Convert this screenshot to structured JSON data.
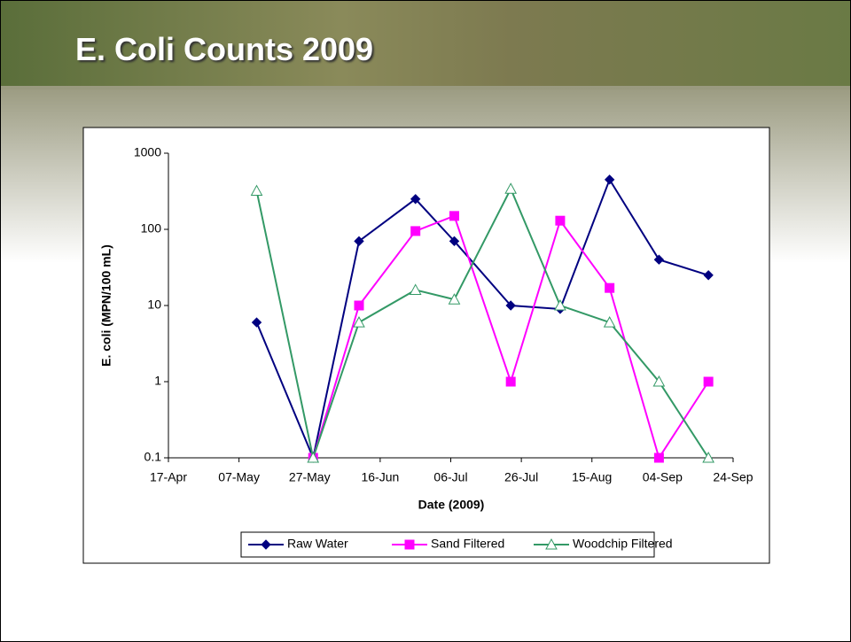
{
  "slide_title": "E. Coli Counts 2009",
  "chart_data": {
    "type": "line",
    "x_label": "Date (2009)",
    "y_label": "E. coli (MPN/100 mL)",
    "x": [
      "2009-05-12",
      "2009-05-28",
      "2009-06-10",
      "2009-06-26",
      "2009-07-07",
      "2009-07-23",
      "2009-08-06",
      "2009-08-20",
      "2009-09-03",
      "2009-09-17"
    ],
    "series": [
      {
        "name": "Raw Water",
        "color": "#000080",
        "marker": "diamond",
        "values": [
          6,
          0.1,
          70,
          250,
          70,
          10,
          9,
          450,
          40,
          25
        ]
      },
      {
        "name": "Sand Filtered",
        "color": "#ff00ff",
        "marker": "square",
        "values": [
          null,
          0.1,
          10,
          95,
          150,
          1,
          130,
          17,
          0.1,
          1
        ]
      },
      {
        "name": "Woodchip Filtered",
        "color": "#339966",
        "marker": "triangle",
        "values": [
          320,
          0.1,
          6,
          16,
          12,
          340,
          10,
          6,
          1,
          0.1
        ]
      }
    ],
    "xlim": [
      "2009-04-17",
      "2009-09-24"
    ],
    "xticks": [
      {
        "value": "2009-04-17",
        "label": "17-Apr"
      },
      {
        "value": "2009-05-07",
        "label": "07-May"
      },
      {
        "value": "2009-05-27",
        "label": "27-May"
      },
      {
        "value": "2009-06-16",
        "label": "16-Jun"
      },
      {
        "value": "2009-07-06",
        "label": "06-Jul"
      },
      {
        "value": "2009-07-26",
        "label": "26-Jul"
      },
      {
        "value": "2009-08-15",
        "label": "15-Aug"
      },
      {
        "value": "2009-09-04",
        "label": "04-Sep"
      },
      {
        "value": "2009-09-24",
        "label": "24-Sep"
      }
    ],
    "ylim": [
      0.1,
      1000
    ],
    "yticks": [
      0.1,
      1,
      10,
      100,
      1000
    ],
    "log_y": true,
    "legend": "bottom"
  }
}
